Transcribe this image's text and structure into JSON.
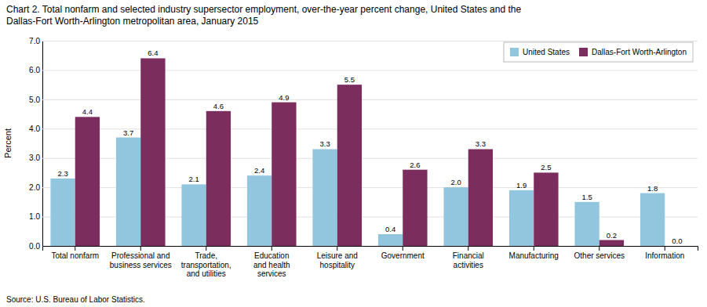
{
  "chart_data": {
    "type": "bar",
    "title": "Chart 2. Total nonfarm and selected industry supersector employment, over-the-year percent change, United States and the\nDallas-Fort Worth-Arlington metropolitan area, January 2015",
    "y_label": "Percent",
    "annotations": [
      "Source: U.S. Bureau of Labor Statistics."
    ],
    "categories": [
      "Total nonfarm",
      "Professional and\nbusiness services",
      "Trade,\ntransportation,\nand utilities",
      "Education\nand health\nservices",
      "Leisure and\nhospitality",
      "Government",
      "Financial\nactivities",
      "Manufacturing",
      "Other services",
      "Information"
    ],
    "series": [
      {
        "name": "United States",
        "color": "#92C5DE",
        "values": [
          2.3,
          3.7,
          2.1,
          2.4,
          3.3,
          0.4,
          2.0,
          1.9,
          1.5,
          1.8
        ],
        "value_labels": [
          "2.3",
          "3.7",
          "2.1",
          "2.4",
          "3.3",
          "0.4",
          "2.0",
          "1.9",
          "1.5",
          "1.8"
        ]
      },
      {
        "name": "Dallas-Fort Worth-Arlington",
        "color": "#7B2D5E",
        "values": [
          4.4,
          6.4,
          4.6,
          4.9,
          5.5,
          2.6,
          3.3,
          2.5,
          0.2,
          0.0
        ],
        "value_labels": [
          "4.4",
          "6.4",
          "4.6",
          "4.9",
          "5.5",
          "2.6",
          "3.3",
          "2.5",
          "0.2",
          "0.0"
        ]
      }
    ],
    "ylim": [
      0,
      7.0
    ],
    "yticks": [
      {
        "value": 0,
        "label": "0.0"
      },
      {
        "value": 1,
        "label": "1.0"
      },
      {
        "value": 2,
        "label": "2.0"
      },
      {
        "value": 3,
        "label": "3.0"
      },
      {
        "value": 4,
        "label": "4.0"
      },
      {
        "value": 5,
        "label": "5.0"
      },
      {
        "value": 6,
        "label": "6.0"
      },
      {
        "value": 7,
        "label": "7.0"
      }
    ],
    "grid": true,
    "legend": "upper right",
    "data_labels": true
  }
}
